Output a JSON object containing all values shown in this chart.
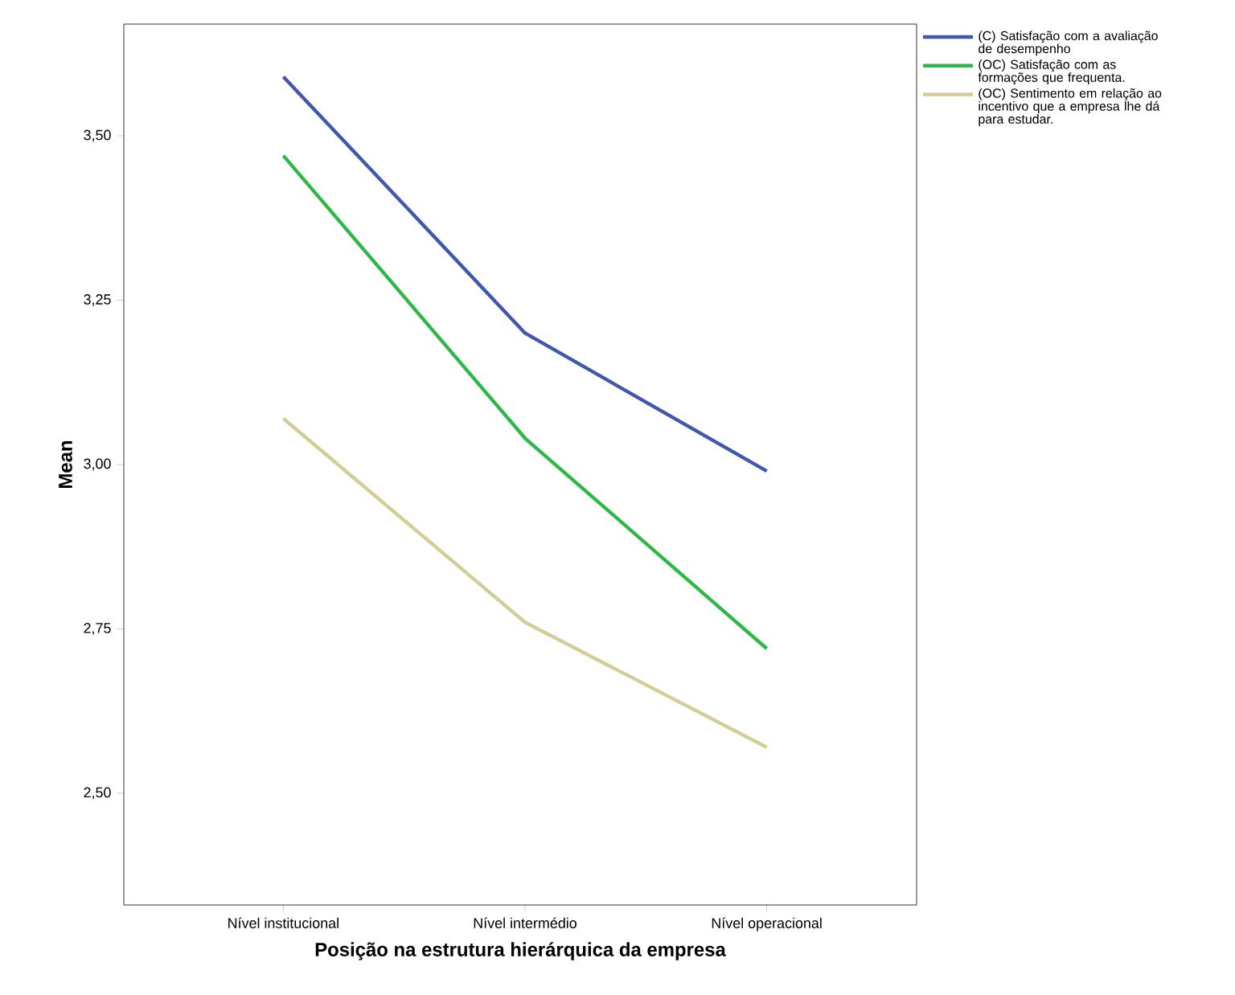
{
  "chart_data": {
    "type": "line",
    "xlabel": "Posição na estrutura hierárquica da empresa",
    "ylabel": "Mean",
    "categories": [
      "Nível institucional",
      "Nível intermédio",
      "Nível operacional"
    ],
    "series": [
      {
        "name": "(C) Satisfação com a avaliação de desempenho",
        "color": "#3e58ac",
        "values": [
          3.59,
          3.2,
          2.99
        ]
      },
      {
        "name": "(OC) Satisfação com as formações que frequenta.",
        "color": "#2eb848",
        "values": [
          3.47,
          3.04,
          2.72
        ]
      },
      {
        "name": "(OC) Sentimento em relação ao incentivo que a empresa lhe dá para estudar.",
        "color": "#d3ce97",
        "values": [
          3.07,
          2.76,
          2.57
        ]
      }
    ],
    "ylim": [
      2.33,
      3.67
    ],
    "yticks": [
      {
        "value": 2.5,
        "label": "2,50"
      },
      {
        "value": 2.75,
        "label": "2,75"
      },
      {
        "value": 3.0,
        "label": "3,00"
      },
      {
        "value": 3.25,
        "label": "3,25"
      },
      {
        "value": 3.5,
        "label": "3,50"
      }
    ],
    "grid": false,
    "legend": "right"
  }
}
